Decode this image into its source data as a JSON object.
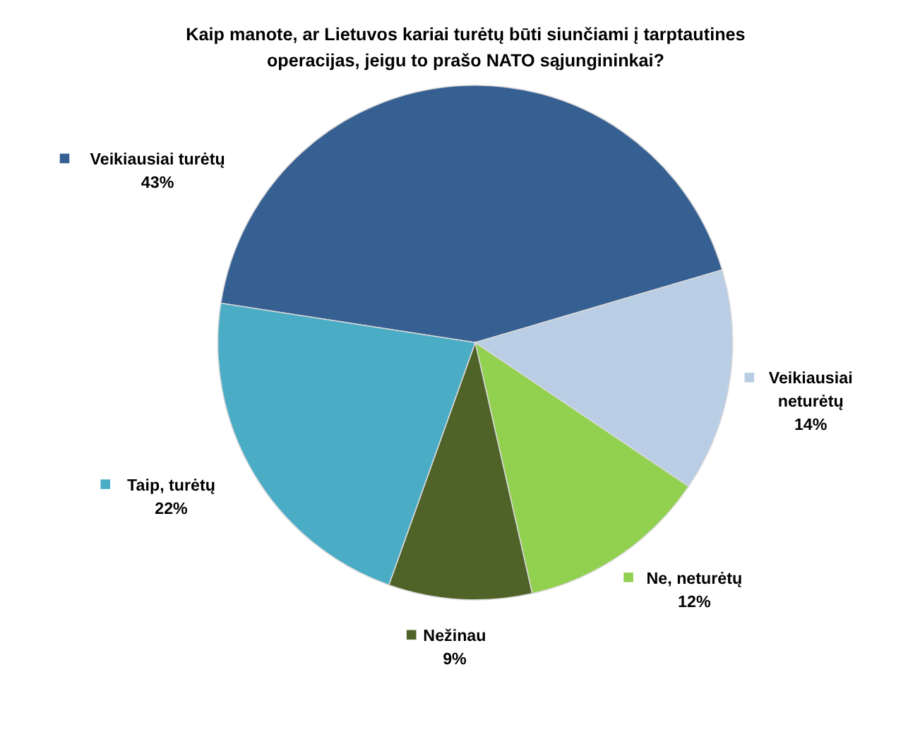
{
  "chart_data": {
    "type": "pie",
    "title": "Kaip manote, ar Lietuvos kariai turėtų būti siunčiami į tarptautines operacijas, jeigu to prašo NATO sąjungininkai?",
    "categories": [
      "Veikiausiai turėtų",
      "Veikiausiai neturėtų",
      "Ne, neturėtų",
      "Nežinau",
      "Taip, turėtų"
    ],
    "values": [
      43,
      14,
      12,
      9,
      22
    ],
    "colors": [
      "#376092",
      "#b9cde5",
      "#92d050",
      "#4f6228",
      "#4bacc6"
    ],
    "value_labels": [
      "43%",
      "14%",
      "12%",
      "9%",
      "22%"
    ],
    "legend": "left"
  }
}
